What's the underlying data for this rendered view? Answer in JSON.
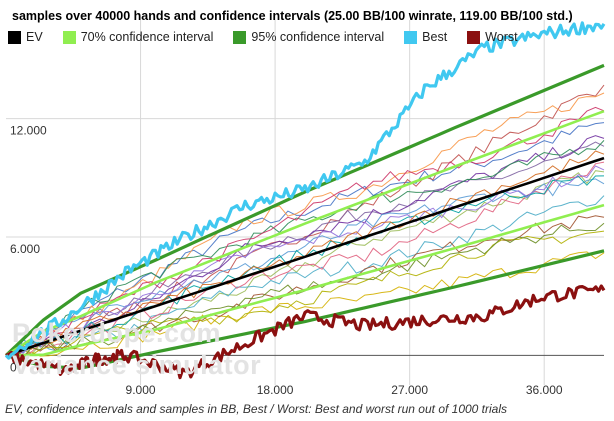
{
  "chart_data": {
    "type": "line",
    "title": "samples over 40000 hands and confidence intervals (25.00 BB/100 winrate, 119.00 BB/100 std.)",
    "x_ticks": [
      "9.000",
      "18.000",
      "27.000",
      "36.000"
    ],
    "y_ticks": [
      "0",
      "6.000",
      "12.000"
    ],
    "x_tick_values": [
      9000,
      18000,
      27000,
      36000
    ],
    "y_tick_values": [
      0,
      6000,
      12000
    ],
    "xlim": [
      0,
      40000
    ],
    "ylim": [
      -1500,
      17000
    ],
    "grid": true,
    "legend_position": "top",
    "legend": [
      {
        "name": "EV",
        "color": "#000000"
      },
      {
        "name": "70% confidence interval",
        "color": "#90ee50"
      },
      {
        "name": "95% confidence interval",
        "color": "#3a9a2a"
      },
      {
        "name": "Best",
        "color": "#40c8f0"
      },
      {
        "name": "Worst",
        "color": "#8b1010"
      }
    ],
    "series": [
      {
        "name": "EV",
        "x": [
          0,
          10000,
          20000,
          30000,
          40000
        ],
        "values": [
          0,
          2500,
          5000,
          7500,
          10000
        ]
      },
      {
        "name": "70% confidence interval",
        "x": [
          0,
          2500,
          5000,
          10000,
          20000,
          30000,
          40000
        ],
        "values": [
          0,
          1218,
          1987,
          3690,
          6683,
          9568,
          12380
        ]
      },
      {
        "name": "70% confidence interval",
        "x": [
          0,
          2500,
          5000,
          10000,
          20000,
          30000,
          40000
        ],
        "values": [
          0,
          32,
          513,
          1310,
          3317,
          5432,
          7620
        ]
      },
      {
        "name": "95% confidence interval",
        "x": [
          0,
          2500,
          5000,
          10000,
          20000,
          30000,
          40000
        ],
        "values": [
          0,
          1795,
          3151,
          4832,
          8286,
          11534,
          14699
        ]
      },
      {
        "name": "95% confidence interval",
        "x": [
          0,
          2500,
          5000,
          10000,
          20000,
          30000,
          40000
        ],
        "values": [
          0,
          -545,
          -651,
          168,
          1714,
          3466,
          5301
        ]
      },
      {
        "name": "Best",
        "x": [
          0,
          4000,
          8000,
          12000,
          16000,
          20000,
          24000,
          28000,
          32000,
          36000,
          40000
        ],
        "values": [
          0,
          1900,
          4200,
          6000,
          7600,
          8400,
          9800,
          13500,
          15600,
          16300,
          16800
        ]
      },
      {
        "name": "Worst",
        "x": [
          0,
          4000,
          6000,
          8000,
          12000,
          16000,
          20000,
          24000,
          28000,
          32000,
          36000,
          40000
        ],
        "values": [
          0,
          -800,
          -200,
          0,
          -900,
          600,
          2000,
          1500,
          1800,
          2000,
          3000,
          3300
        ]
      }
    ],
    "samples": {
      "x": [
        0,
        8000,
        16000,
        24000,
        32000,
        40000
      ],
      "lines": [
        {
          "color": "#4472c4",
          "values": [
            0,
            3400,
            6400,
            8300,
            9800,
            11800
          ]
        },
        {
          "color": "#c0504d",
          "values": [
            0,
            2300,
            4800,
            7600,
            10500,
            13700
          ]
        },
        {
          "color": "#9bbb59",
          "values": [
            0,
            1500,
            3400,
            5800,
            7600,
            9300
          ]
        },
        {
          "color": "#8064a2",
          "values": [
            0,
            2600,
            5200,
            7300,
            8800,
            10600
          ]
        },
        {
          "color": "#4bacc6",
          "values": [
            0,
            1200,
            3500,
            4600,
            6300,
            8100
          ]
        },
        {
          "color": "#f79646",
          "values": [
            0,
            3100,
            6800,
            8400,
            11300,
            13300
          ]
        },
        {
          "color": "#d4b000",
          "values": [
            0,
            800,
            2200,
            2800,
            4000,
            5200
          ]
        },
        {
          "color": "#7030a0",
          "values": [
            0,
            2100,
            5400,
            7000,
            9100,
            11000
          ]
        },
        {
          "color": "#2e8b57",
          "values": [
            0,
            3600,
            5800,
            7800,
            9000,
            10900
          ]
        },
        {
          "color": "#e0607e",
          "values": [
            0,
            1700,
            3900,
            5000,
            7200,
            9800
          ]
        },
        {
          "color": "#5a9bd5",
          "values": [
            0,
            2800,
            4400,
            6600,
            8100,
            8700
          ]
        },
        {
          "color": "#a0522d",
          "values": [
            0,
            1100,
            2600,
            4300,
            5900,
            7000
          ]
        },
        {
          "color": "#b0b000",
          "values": [
            0,
            1300,
            2100,
            3600,
            5400,
            6300
          ]
        },
        {
          "color": "#00a0a0",
          "values": [
            0,
            1900,
            4300,
            6000,
            7900,
            9100
          ]
        },
        {
          "color": "#9370db",
          "values": [
            0,
            2500,
            5100,
            6500,
            7800,
            9400
          ]
        },
        {
          "color": "#cc3366",
          "values": [
            0,
            3000,
            5700,
            8700,
            10100,
            12400
          ]
        },
        {
          "color": "#6b8e23",
          "values": [
            0,
            1000,
            2900,
            4000,
            5500,
            6700
          ]
        },
        {
          "color": "#d2691e",
          "values": [
            0,
            2200,
            4000,
            6200,
            8300,
            10200
          ]
        }
      ]
    }
  },
  "watermark": {
    "line1": "Pokerdope.com",
    "line2": "Variance simulator"
  },
  "caption": "EV, confidence intervals and samples in BB, Best / Worst: Best and worst run out of 1000 trials"
}
